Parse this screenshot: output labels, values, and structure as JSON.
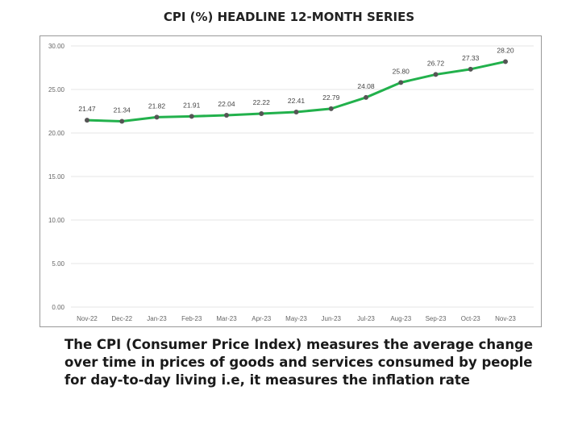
{
  "chart_data": {
    "type": "line",
    "title": "CPI (%)  HEADLINE 12-MONTH SERIES",
    "categories": [
      "Nov-22",
      "Dec-22",
      "Jan-23",
      "Feb-23",
      "Mar-23",
      "Apr-23",
      "May-23",
      "Jun-23",
      "Jul-23",
      "Aug-23",
      "Sep-23",
      "Oct-23",
      "Nov-23"
    ],
    "values": [
      21.47,
      21.34,
      21.82,
      21.91,
      22.04,
      22.22,
      22.41,
      22.79,
      24.08,
      25.8,
      26.72,
      27.33,
      28.2
    ],
    "value_labels": [
      "21.47",
      "21.34",
      "21.82",
      "21.91",
      "22.04",
      "22.22",
      "22.41",
      "22.79",
      "24.08",
      "25.80",
      "26.72",
      "27.33",
      "28.20"
    ],
    "yticks": [
      "0.00",
      "5.00",
      "10.00",
      "15.00",
      "20.00",
      "25.00",
      "30.00"
    ],
    "ylim": [
      0,
      30
    ],
    "grid": true,
    "line_color": "#22b14c",
    "marker_color": "#555555"
  },
  "caption": "The CPI (Consumer Price Index) measures the average change over time in prices of goods and services consumed by people for day-to-day living i.e, it measures the inflation rate"
}
